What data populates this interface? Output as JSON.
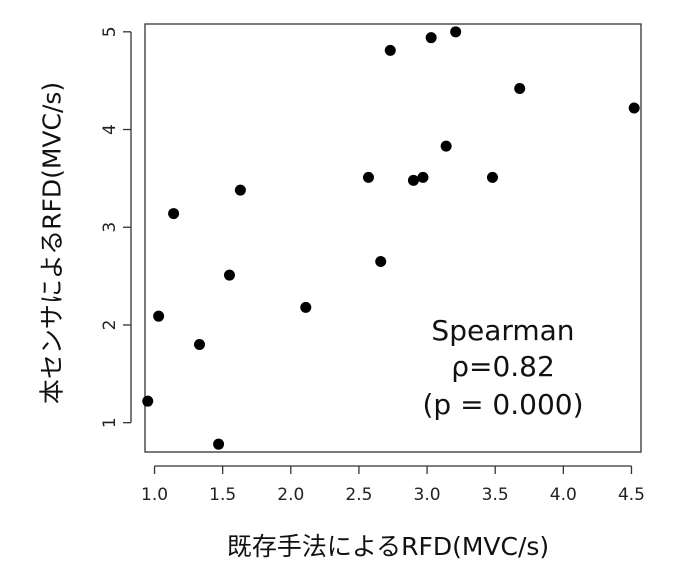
{
  "chart_data": {
    "type": "scatter",
    "xlabel": "既存手法によるRFD(MVC/s)",
    "ylabel": "本センサによるRFD(MVC/s)",
    "xlim": [
      0.93,
      4.57
    ],
    "ylim": [
      0.7,
      5.08
    ],
    "x_ticks": [
      1.0,
      1.5,
      2.0,
      2.5,
      3.0,
      3.5,
      4.0,
      4.5
    ],
    "x_tick_labels": [
      "1.0",
      "1.5",
      "2.0",
      "2.5",
      "3.0",
      "3.5",
      "4.0",
      "4.5"
    ],
    "y_ticks": [
      1,
      2,
      3,
      4,
      5
    ],
    "y_tick_labels": [
      "1",
      "2",
      "3",
      "4",
      "5"
    ],
    "grid": false,
    "annotation": [
      "Spearman",
      "ρ=0.82",
      "(p = 0.000)"
    ],
    "marker_color": "#000000",
    "points": [
      {
        "x": 0.95,
        "y": 1.22
      },
      {
        "x": 1.03,
        "y": 2.09
      },
      {
        "x": 1.14,
        "y": 3.14
      },
      {
        "x": 1.33,
        "y": 1.8
      },
      {
        "x": 1.47,
        "y": 0.78
      },
      {
        "x": 1.55,
        "y": 2.51
      },
      {
        "x": 1.63,
        "y": 3.38
      },
      {
        "x": 2.11,
        "y": 2.18
      },
      {
        "x": 2.57,
        "y": 3.51
      },
      {
        "x": 2.66,
        "y": 2.65
      },
      {
        "x": 2.73,
        "y": 4.81
      },
      {
        "x": 2.9,
        "y": 3.48
      },
      {
        "x": 2.97,
        "y": 3.51
      },
      {
        "x": 3.03,
        "y": 4.94
      },
      {
        "x": 3.14,
        "y": 3.83
      },
      {
        "x": 3.21,
        "y": 5.0
      },
      {
        "x": 3.48,
        "y": 3.51
      },
      {
        "x": 3.68,
        "y": 4.42
      },
      {
        "x": 4.52,
        "y": 4.22
      }
    ]
  }
}
